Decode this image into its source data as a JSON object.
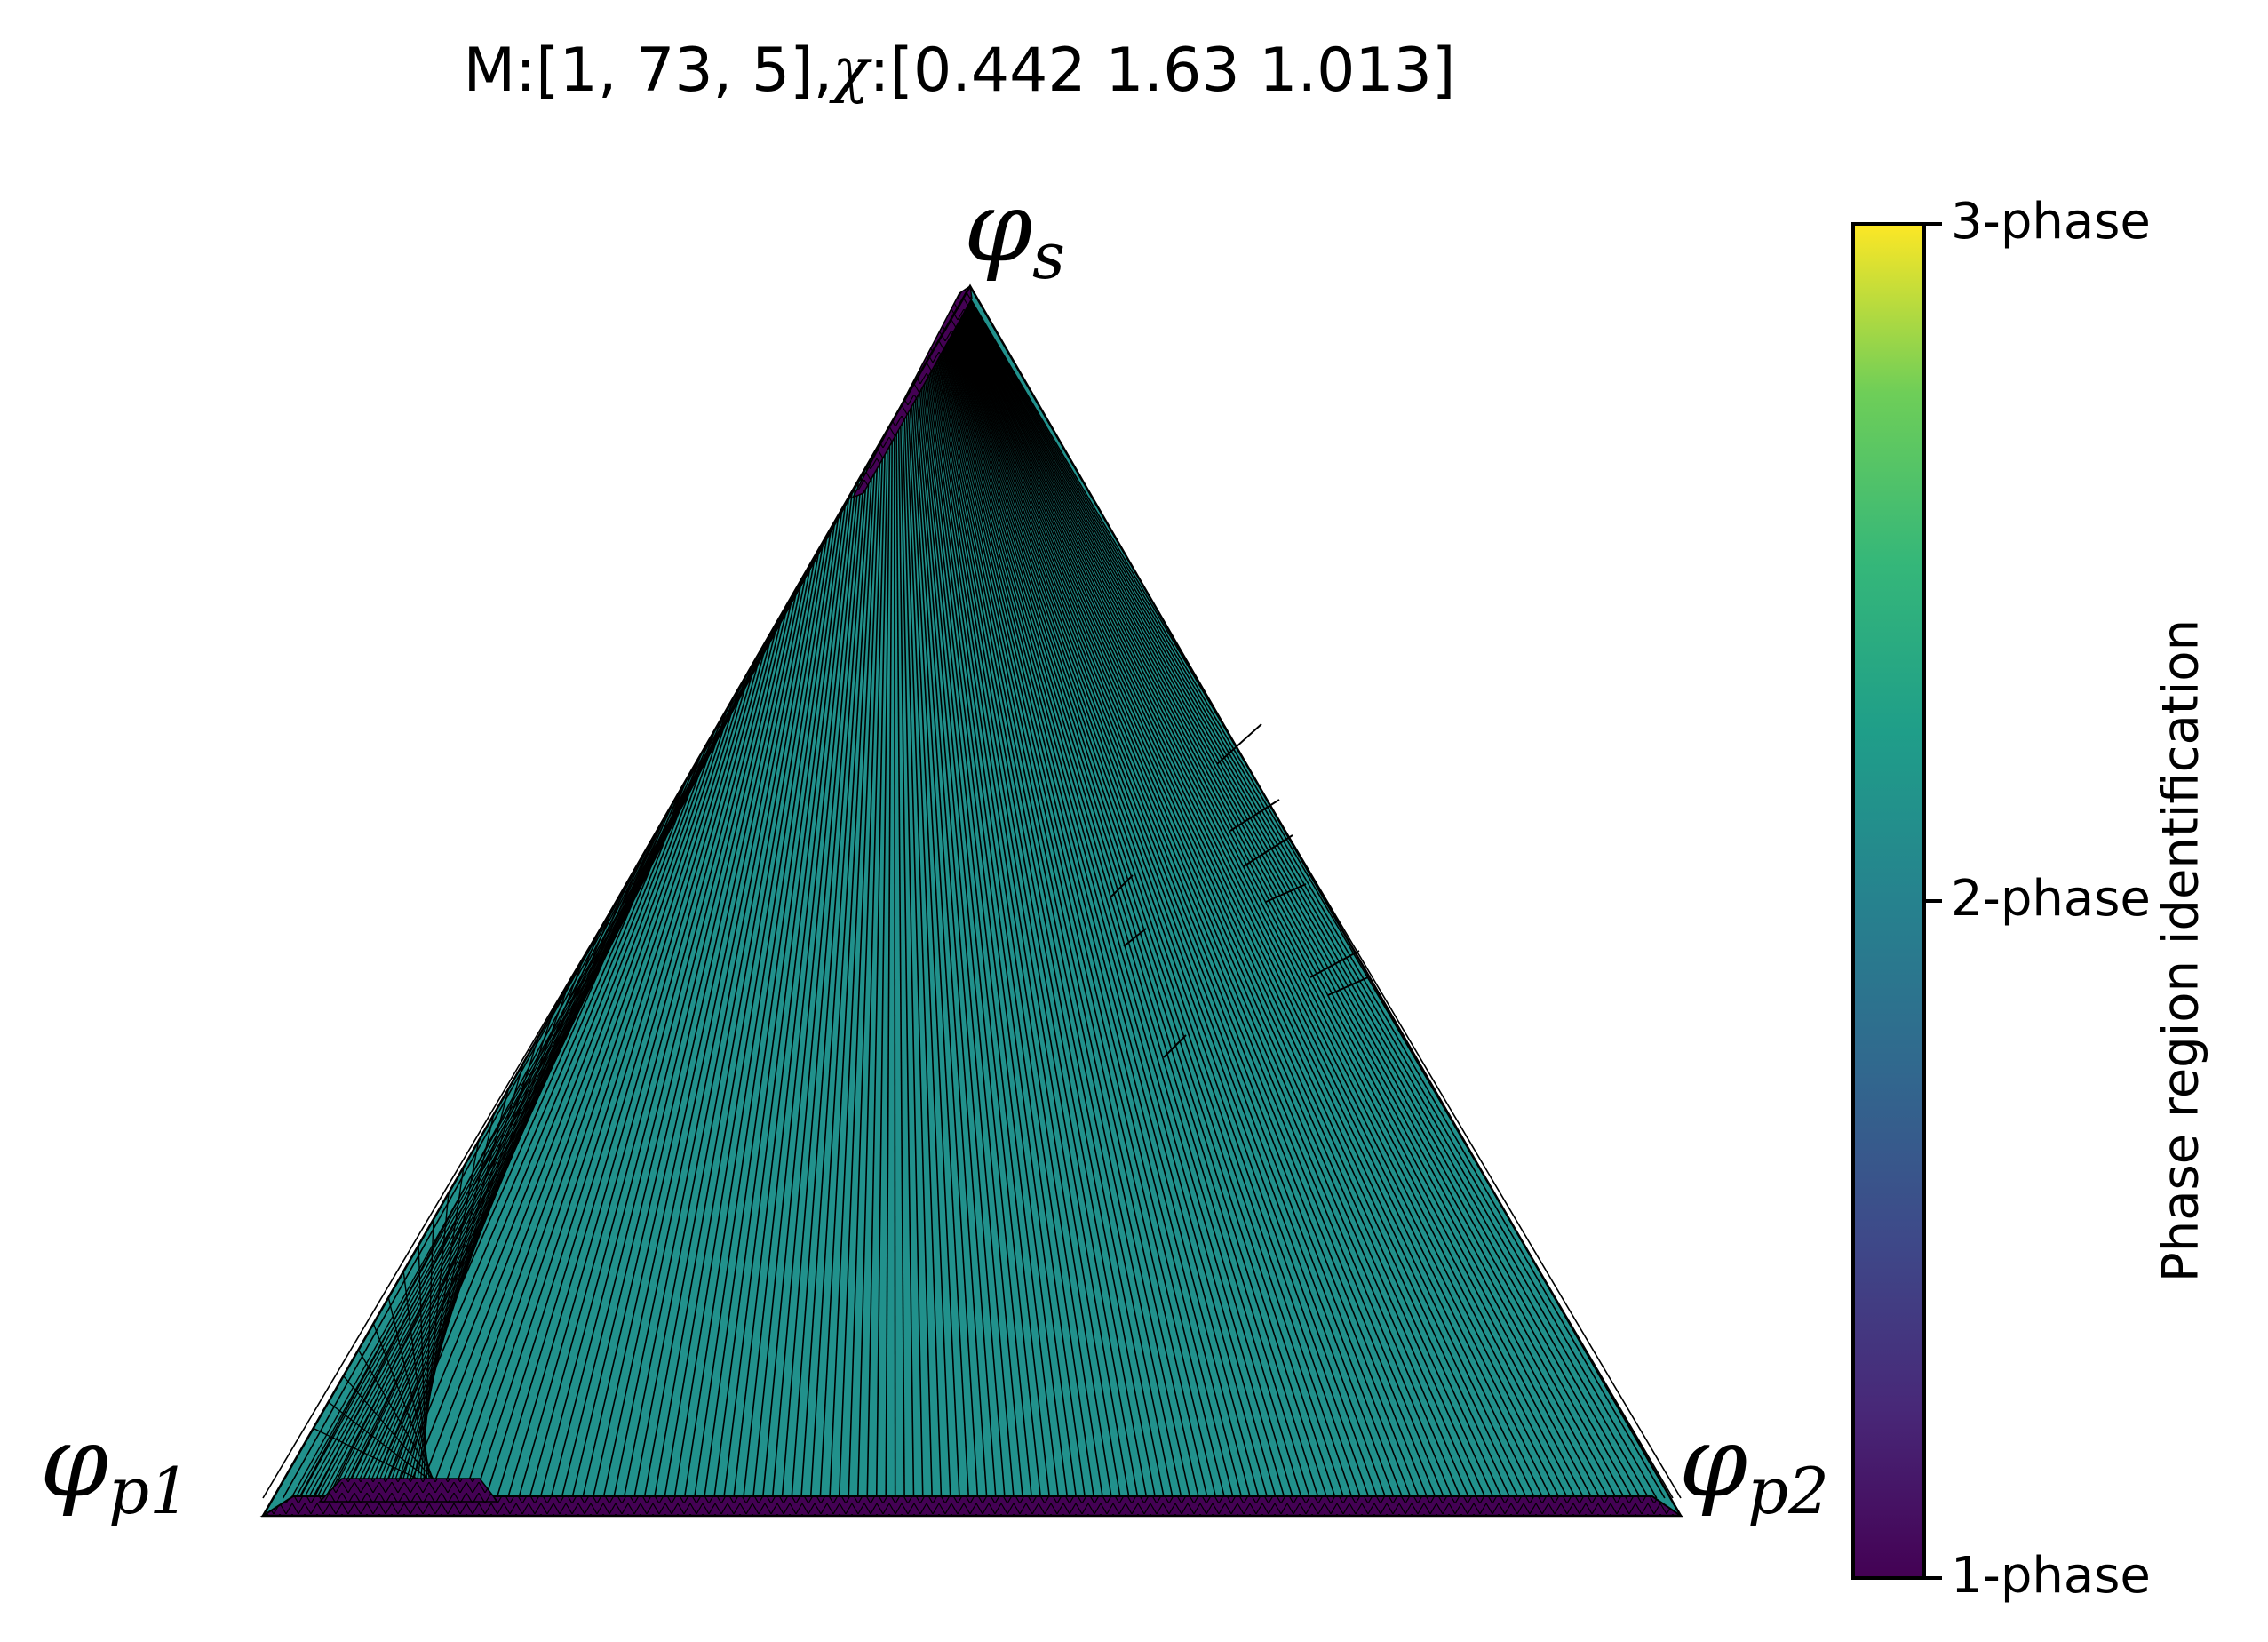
{
  "title": {
    "prefix": "M:[1, 73, 5],",
    "chi_symbol": "χ",
    "suffix": ":[0.442 1.63 1.013]"
  },
  "vertices": {
    "top": {
      "base": "φ",
      "sub": "s"
    },
    "left": {
      "base": "φ",
      "sub": "p1"
    },
    "right": {
      "base": "φ",
      "sub": "p2"
    }
  },
  "colorbar": {
    "label": "Phase region identification",
    "ticks": [
      {
        "value": 1,
        "label": "1-phase"
      },
      {
        "value": 2,
        "label": "2-phase"
      },
      {
        "value": 3,
        "label": "3-phase"
      }
    ],
    "colormap": "viridis",
    "range": [
      1,
      3
    ]
  },
  "colors": {
    "one_phase": "#440154",
    "two_phase": "#21918c",
    "three_phase": "#fde725",
    "edge": "#000000"
  },
  "chart_data": {
    "type": "ternary",
    "title": "M:[1, 73, 5],χ:[0.442 1.63 1.013]",
    "axes": [
      "φs",
      "φp1",
      "φp2"
    ],
    "regions": [
      {
        "phase": 1,
        "description_ref": "colorbar.ticks.0.label",
        "location": "narrow band along φp1–φp2 edge and φs–φp1 edge near φs"
      },
      {
        "phase": 2,
        "description_ref": "colorbar.ticks.1.label",
        "location": "interior of triangle, fan of tie-lines converging toward φs"
      }
    ],
    "colorbar_range": [
      1,
      3
    ],
    "legend": "colorbar-right"
  }
}
